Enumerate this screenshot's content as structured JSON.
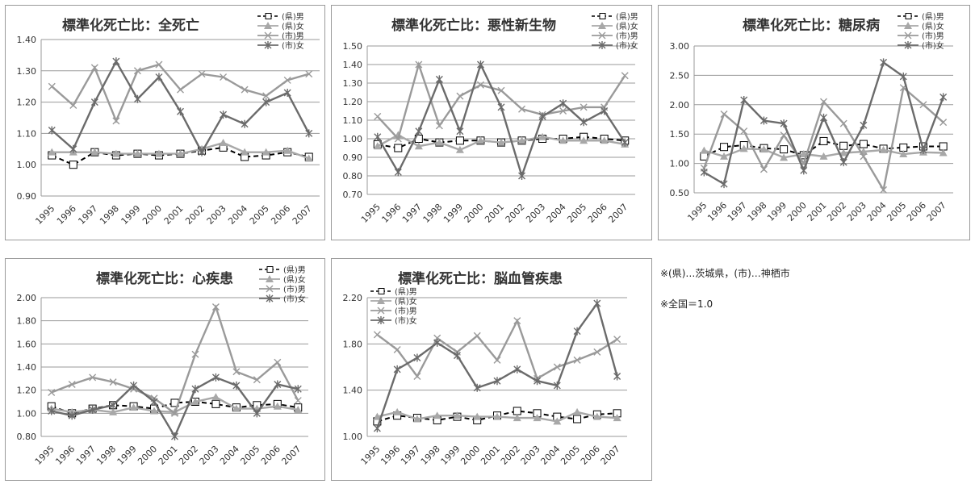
{
  "notes": {
    "legend_note": "※(県)…茨城県，(市)…神栖市",
    "baseline_note": "※全国＝1.0"
  },
  "chart_data": [
    {
      "type": "line",
      "title": "標準化死亡比：全死亡",
      "categories": [
        "1995",
        "1996",
        "1997",
        "1998",
        "1999",
        "2000",
        "2001",
        "2002",
        "2003",
        "2004",
        "2005",
        "2006",
        "2007"
      ],
      "ylim": [
        0.9,
        1.4
      ],
      "yticks": [
        "0.90",
        "1.00",
        "1.10",
        "1.20",
        "1.30",
        "1.40"
      ],
      "legend": "top-right",
      "series": [
        {
          "name": "(県)男",
          "marker": "square",
          "dashed": true,
          "color": "#000000",
          "values": [
            1.03,
            1.0,
            1.04,
            1.03,
            1.035,
            1.03,
            1.035,
            1.045,
            1.055,
            1.025,
            1.03,
            1.04,
            1.025
          ]
        },
        {
          "name": "(県)女",
          "marker": "triangle",
          "dashed": false,
          "color": "#a8a8a8",
          "values": [
            1.04,
            1.04,
            1.04,
            1.035,
            1.035,
            1.035,
            1.035,
            1.05,
            1.07,
            1.04,
            1.04,
            1.045,
            1.02
          ]
        },
        {
          "name": "(市)男",
          "marker": "x",
          "dashed": false,
          "color": "#9a9a9a",
          "values": [
            1.25,
            1.19,
            1.31,
            1.14,
            1.3,
            1.32,
            1.24,
            1.29,
            1.28,
            1.24,
            1.22,
            1.27,
            1.29
          ]
        },
        {
          "name": "(市)女",
          "marker": "star",
          "dashed": false,
          "color": "#6b6b6b",
          "values": [
            1.11,
            1.05,
            1.2,
            1.33,
            1.21,
            1.28,
            1.17,
            1.04,
            1.16,
            1.13,
            1.2,
            1.23,
            1.1
          ]
        }
      ]
    },
    {
      "type": "line",
      "title": "標準化死亡比：悪性新生物",
      "categories": [
        "1995",
        "1996",
        "1997",
        "1998",
        "1999",
        "2000",
        "2001",
        "2002",
        "2003",
        "2004",
        "2005",
        "2006",
        "2007"
      ],
      "ylim": [
        0.7,
        1.5
      ],
      "yticks": [
        "0.70",
        "0.80",
        "0.90",
        "1.00",
        "1.10",
        "1.20",
        "1.30",
        "1.40",
        "1.50"
      ],
      "legend": "top-right",
      "series": [
        {
          "name": "(県)男",
          "marker": "square",
          "dashed": true,
          "color": "#000000",
          "values": [
            0.97,
            0.95,
            1.0,
            0.98,
            0.99,
            0.99,
            0.98,
            0.99,
            1.0,
            1.0,
            1.01,
            1.0,
            0.99
          ]
        },
        {
          "name": "(県)女",
          "marker": "triangle",
          "dashed": false,
          "color": "#a8a8a8",
          "values": [
            0.96,
            1.02,
            0.96,
            0.98,
            0.94,
            0.99,
            0.98,
            0.99,
            1.01,
            0.99,
            0.99,
            0.99,
            0.97
          ]
        },
        {
          "name": "(市)男",
          "marker": "x",
          "dashed": false,
          "color": "#9a9a9a",
          "values": [
            1.12,
            1.0,
            1.4,
            1.07,
            1.23,
            1.29,
            1.26,
            1.16,
            1.13,
            1.15,
            1.17,
            1.17,
            1.34
          ]
        },
        {
          "name": "(市)女",
          "marker": "star",
          "dashed": false,
          "color": "#6b6b6b",
          "values": [
            1.01,
            0.82,
            1.04,
            1.32,
            1.04,
            1.4,
            1.17,
            0.8,
            1.12,
            1.19,
            1.09,
            1.15,
            0.98
          ]
        }
      ]
    },
    {
      "type": "line",
      "title": "標準化死亡比：糖尿病",
      "categories": [
        "1995",
        "1996",
        "1997",
        "1998",
        "1999",
        "2000",
        "2001",
        "2002",
        "2003",
        "2004",
        "2005",
        "2006",
        "2007"
      ],
      "ylim": [
        0.5,
        3.0
      ],
      "yticks": [
        "0.50",
        "1.00",
        "1.50",
        "2.00",
        "2.50",
        "3.00"
      ],
      "legend": "top-right",
      "series": [
        {
          "name": "(県)男",
          "marker": "square",
          "dashed": true,
          "color": "#000000",
          "values": [
            1.12,
            1.28,
            1.31,
            1.26,
            1.24,
            1.14,
            1.38,
            1.3,
            1.33,
            1.25,
            1.27,
            1.29,
            1.29
          ]
        },
        {
          "name": "(県)女",
          "marker": "triangle",
          "dashed": false,
          "color": "#a8a8a8",
          "values": [
            1.22,
            1.12,
            1.25,
            1.24,
            1.1,
            1.16,
            1.12,
            1.18,
            1.2,
            1.23,
            1.16,
            1.19,
            1.18
          ]
        },
        {
          "name": "(市)男",
          "marker": "x",
          "dashed": false,
          "color": "#9a9a9a",
          "values": [
            0.92,
            1.84,
            1.55,
            0.9,
            1.48,
            1.0,
            2.05,
            1.68,
            1.12,
            0.55,
            2.29,
            2.0,
            1.7
          ]
        },
        {
          "name": "(市)女",
          "marker": "star",
          "dashed": false,
          "color": "#6b6b6b",
          "values": [
            0.85,
            0.65,
            2.08,
            1.73,
            1.68,
            0.88,
            1.78,
            1.02,
            1.65,
            2.72,
            2.48,
            1.23,
            2.13
          ]
        }
      ]
    },
    {
      "type": "line",
      "title": "標準化死亡比：心疾患",
      "categories": [
        "1995",
        "1996",
        "1997",
        "1998",
        "1999",
        "2000",
        "2001",
        "2002",
        "2003",
        "2004",
        "2005",
        "2006",
        "2007"
      ],
      "ylim": [
        0.8,
        2.0
      ],
      "yticks": [
        "0.80",
        "1.00",
        "1.20",
        "1.40",
        "1.60",
        "1.80",
        "2.00"
      ],
      "legend": "top-right",
      "series": [
        {
          "name": "(県)男",
          "marker": "square",
          "dashed": true,
          "color": "#000000",
          "values": [
            1.06,
            1.0,
            1.04,
            1.07,
            1.06,
            1.04,
            1.09,
            1.1,
            1.08,
            1.05,
            1.07,
            1.08,
            1.05
          ]
        },
        {
          "name": "(県)女",
          "marker": "triangle",
          "dashed": false,
          "color": "#a8a8a8",
          "values": [
            1.04,
            1.01,
            1.03,
            1.01,
            1.05,
            1.02,
            1.01,
            1.1,
            1.14,
            1.04,
            1.04,
            1.06,
            1.03
          ]
        },
        {
          "name": "(市)男",
          "marker": "x",
          "dashed": false,
          "color": "#9a9a9a",
          "values": [
            1.18,
            1.25,
            1.31,
            1.27,
            1.21,
            1.13,
            1.0,
            1.51,
            1.92,
            1.36,
            1.29,
            1.44,
            1.11
          ]
        },
        {
          "name": "(市)女",
          "marker": "star",
          "dashed": false,
          "color": "#6b6b6b",
          "values": [
            1.02,
            0.98,
            1.03,
            1.07,
            1.24,
            1.1,
            0.8,
            1.21,
            1.31,
            1.24,
            1.0,
            1.25,
            1.21
          ]
        }
      ]
    },
    {
      "type": "line",
      "title": "標準化死亡比：脳血管疾患",
      "categories": [
        "1995",
        "1996",
        "1997",
        "1998",
        "1999",
        "2000",
        "2001",
        "2002",
        "2003",
        "2004",
        "2005",
        "2006",
        "2007"
      ],
      "ylim": [
        1.0,
        2.2
      ],
      "yticks": [
        "1.00",
        "1.40",
        "1.80",
        "2.20"
      ],
      "legend": "top-left",
      "series": [
        {
          "name": "(県)男",
          "marker": "square",
          "dashed": true,
          "color": "#000000",
          "values": [
            1.13,
            1.18,
            1.16,
            1.14,
            1.17,
            1.14,
            1.18,
            1.22,
            1.2,
            1.17,
            1.15,
            1.19,
            1.2
          ]
        },
        {
          "name": "(県)女",
          "marker": "triangle",
          "dashed": false,
          "color": "#a8a8a8",
          "values": [
            1.17,
            1.21,
            1.15,
            1.18,
            1.18,
            1.17,
            1.17,
            1.16,
            1.16,
            1.13,
            1.21,
            1.17,
            1.16
          ]
        },
        {
          "name": "(市)男",
          "marker": "x",
          "dashed": false,
          "color": "#9a9a9a",
          "values": [
            1.88,
            1.75,
            1.52,
            1.85,
            1.73,
            1.87,
            1.66,
            2.0,
            1.5,
            1.6,
            1.66,
            1.73,
            1.84
          ]
        },
        {
          "name": "(市)女",
          "marker": "star",
          "dashed": false,
          "color": "#6b6b6b",
          "values": [
            1.07,
            1.58,
            1.68,
            1.81,
            1.7,
            1.42,
            1.48,
            1.58,
            1.48,
            1.44,
            1.91,
            2.15,
            1.52
          ]
        }
      ]
    }
  ]
}
